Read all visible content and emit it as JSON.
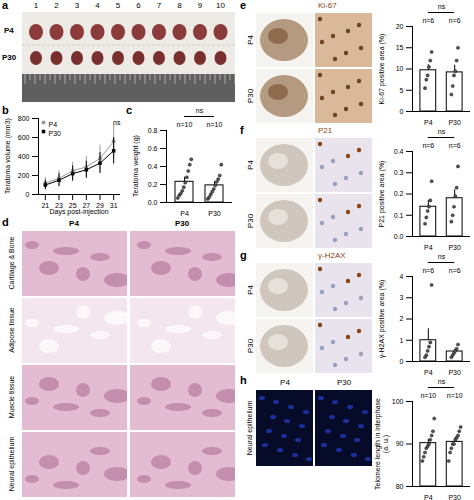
{
  "images": [
    {
      "panel": "a",
      "column_numbers": [
        "1",
        "2",
        "3",
        "4",
        "5",
        "6",
        "7",
        "8",
        "9",
        "10"
      ],
      "rows": [
        "P4",
        "P30"
      ]
    },
    {
      "panel": "d",
      "columns": [
        "P4",
        "P30"
      ],
      "rows": [
        "Cartilage & Bone",
        "Adipose tissue",
        "Muscle tissue",
        "Neural epithelium"
      ]
    },
    {
      "panel": "e",
      "stain": "Ki-67",
      "rows": [
        "P4",
        "P30"
      ]
    },
    {
      "panel": "f",
      "stain": "P21",
      "rows": [
        "P4",
        "P30"
      ]
    },
    {
      "panel": "g",
      "stain": "γ-H2AX",
      "rows": [
        "P4",
        "P30"
      ]
    },
    {
      "panel": "h",
      "columns": [
        "P4",
        "P30"
      ],
      "rows": [
        "Neural epithelium"
      ]
    }
  ],
  "chart_data": [
    {
      "panel": "b",
      "type": "line",
      "x_label": "Days post-injection",
      "y_label": "Teratoma volume (mm3)",
      "x": [
        21,
        23,
        25,
        27,
        29,
        31
      ],
      "xlim": [
        20,
        32
      ],
      "xticks": [
        21,
        23,
        25,
        27,
        29,
        31
      ],
      "ylim": [
        0,
        800
      ],
      "yticks": [
        0,
        200,
        400,
        600,
        800
      ],
      "legend": "top-left",
      "annotation": "ns",
      "series": [
        {
          "name": "P4",
          "color": "#9a9a9a",
          "marker": "circle",
          "values": [
            120,
            170,
            250,
            290,
            380,
            560
          ],
          "errors": [
            60,
            80,
            90,
            110,
            140,
            180
          ]
        },
        {
          "name": "P30",
          "color": "#000000",
          "marker": "square",
          "values": [
            100,
            150,
            220,
            260,
            330,
            460
          ],
          "errors": [
            50,
            70,
            80,
            90,
            110,
            140
          ]
        }
      ]
    },
    {
      "panel": "c",
      "type": "bar",
      "y_label": "Teratoma weight (g)",
      "categories": [
        "P4",
        "P30"
      ],
      "values": [
        0.23,
        0.19
      ],
      "errors": [
        0.05,
        0.04
      ],
      "color": "#000000",
      "points": [
        [
          0.05,
          0.08,
          0.1,
          0.13,
          0.17,
          0.22,
          0.28,
          0.35,
          0.42,
          0.48
        ],
        [
          0.04,
          0.06,
          0.09,
          0.12,
          0.15,
          0.19,
          0.23,
          0.26,
          0.3,
          0.42
        ]
      ],
      "n_labels": [
        "n=10",
        "n=10"
      ],
      "annotation": "ns",
      "ylim": [
        0,
        0.8
      ],
      "yticks": [
        {
          "value": 0,
          "label": "0.0"
        },
        {
          "value": 0.2,
          "label": "0.2"
        },
        {
          "value": 0.4,
          "label": "0.4"
        },
        {
          "value": 0.6,
          "label": "0.6"
        },
        {
          "value": 0.8,
          "label": "0.8"
        }
      ]
    },
    {
      "type": "bar",
      "y_label": "Ki-67 positive area (%)",
      "categories": [
        "P4",
        "P30"
      ],
      "values": [
        9.7,
        9.2
      ],
      "errors": [
        1.3,
        1.7
      ],
      "color": "#000000",
      "points": [
        [
          5.5,
          7.5,
          8.5,
          10.5,
          12,
          14
        ],
        [
          4,
          6,
          8.5,
          9.5,
          12,
          15
        ]
      ],
      "n_labels": [
        "n=6",
        "n=6"
      ],
      "annotation": "ns",
      "ylim": [
        0,
        20
      ],
      "yticks": [
        0,
        5,
        10,
        15,
        20
      ]
    },
    {
      "type": "bar",
      "y_label": "P21 positive area (%)",
      "categories": [
        "P4",
        "P30"
      ],
      "values": [
        0.14,
        0.18
      ],
      "errors": [
        0.03,
        0.04
      ],
      "color": "#000000",
      "points": [
        [
          0.06,
          0.09,
          0.12,
          0.14,
          0.17,
          0.26
        ],
        [
          0.07,
          0.1,
          0.14,
          0.19,
          0.23,
          0.33
        ]
      ],
      "n_labels": [
        "n=6",
        "n=6"
      ],
      "annotation": "ns",
      "ylim": [
        0,
        0.4
      ],
      "yticks": [
        {
          "value": 0,
          "label": "0.0"
        },
        {
          "value": 0.1,
          "label": "0.1"
        },
        {
          "value": 0.2,
          "label": "0.2"
        },
        {
          "value": 0.3,
          "label": "0.3"
        },
        {
          "value": 0.4,
          "label": "0.4"
        }
      ]
    },
    {
      "type": "bar",
      "y_label": "γ-H2AX positive area (%)",
      "categories": [
        "P4",
        "P30"
      ],
      "values": [
        1.0,
        0.47
      ],
      "errors": [
        0.54,
        0.09
      ],
      "color": "#000000",
      "points": [
        [
          0.2,
          0.3,
          0.5,
          0.7,
          0.9,
          3.6
        ],
        [
          0.2,
          0.3,
          0.4,
          0.5,
          0.6,
          0.8
        ]
      ],
      "n_labels": [
        "n=6",
        "n=6"
      ],
      "annotation": "ns",
      "ylim": [
        0,
        4
      ],
      "yticks": [
        0,
        1,
        2,
        3,
        4
      ]
    },
    {
      "type": "bar",
      "y_label": "Telomere length in interphase (a. u.)",
      "categories": [
        "P4",
        "P30"
      ],
      "values": [
        90.2,
        90.5
      ],
      "errors": [
        0.9,
        0.8
      ],
      "color": "#000000",
      "points": [
        [
          86,
          87,
          88,
          89,
          89.5,
          90,
          91,
          92,
          93,
          96
        ],
        [
          86,
          88,
          89,
          90,
          90,
          91,
          91.5,
          92,
          93,
          94
        ]
      ],
      "n_labels": [
        "n=10",
        "n=10"
      ],
      "annotation": "ns",
      "ylim": [
        80,
        100
      ],
      "yticks": [
        80,
        90,
        100
      ]
    }
  ]
}
